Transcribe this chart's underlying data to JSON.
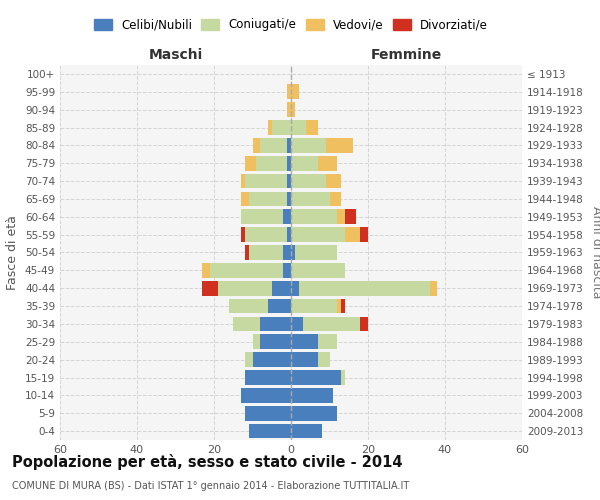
{
  "age_groups_bottom_to_top": [
    "0-4",
    "5-9",
    "10-14",
    "15-19",
    "20-24",
    "25-29",
    "30-34",
    "35-39",
    "40-44",
    "45-49",
    "50-54",
    "55-59",
    "60-64",
    "65-69",
    "70-74",
    "75-79",
    "80-84",
    "85-89",
    "90-94",
    "95-99",
    "100+"
  ],
  "birth_years_bottom_to_top": [
    "2009-2013",
    "2004-2008",
    "1999-2003",
    "1994-1998",
    "1989-1993",
    "1984-1988",
    "1979-1983",
    "1974-1978",
    "1969-1973",
    "1964-1968",
    "1959-1963",
    "1954-1958",
    "1949-1953",
    "1944-1948",
    "1939-1943",
    "1934-1938",
    "1929-1933",
    "1924-1928",
    "1919-1923",
    "1914-1918",
    "≤ 1913"
  ],
  "males": {
    "celibi": [
      11,
      12,
      13,
      12,
      10,
      8,
      8,
      6,
      5,
      2,
      2,
      1,
      2,
      1,
      1,
      1,
      1,
      0,
      0,
      0,
      0
    ],
    "coniugati": [
      0,
      0,
      0,
      0,
      2,
      2,
      7,
      10,
      14,
      19,
      9,
      11,
      11,
      10,
      11,
      8,
      7,
      5,
      0,
      0,
      0
    ],
    "vedovi": [
      0,
      0,
      0,
      0,
      0,
      0,
      0,
      0,
      0,
      2,
      0,
      0,
      0,
      2,
      1,
      3,
      2,
      1,
      1,
      1,
      0
    ],
    "divorziati": [
      0,
      0,
      0,
      0,
      0,
      0,
      0,
      0,
      4,
      0,
      1,
      1,
      0,
      0,
      0,
      0,
      0,
      0,
      0,
      0,
      0
    ]
  },
  "females": {
    "nubili": [
      8,
      12,
      11,
      13,
      7,
      7,
      3,
      0,
      2,
      0,
      1,
      0,
      0,
      0,
      0,
      0,
      0,
      0,
      0,
      0,
      0
    ],
    "coniugate": [
      0,
      0,
      0,
      1,
      3,
      5,
      15,
      12,
      34,
      14,
      11,
      14,
      12,
      10,
      9,
      7,
      9,
      4,
      0,
      0,
      0
    ],
    "vedove": [
      0,
      0,
      0,
      0,
      0,
      0,
      0,
      1,
      2,
      0,
      0,
      4,
      2,
      3,
      4,
      5,
      7,
      3,
      1,
      2,
      0
    ],
    "divorziate": [
      0,
      0,
      0,
      0,
      0,
      0,
      2,
      1,
      0,
      0,
      0,
      2,
      3,
      0,
      0,
      0,
      0,
      0,
      0,
      0,
      0
    ]
  },
  "colors": {
    "celibi": "#4a7fbd",
    "coniugati": "#c5d9a0",
    "vedovi": "#f0c060",
    "divorziati": "#d03020"
  },
  "xlim": 60,
  "title_main": "Popolazione per età, sesso e stato civile - 2014",
  "title_sub": "COMUNE DI MURA (BS) - Dati ISTAT 1° gennaio 2014 - Elaborazione TUTTITALIA.IT",
  "ylabel_left": "Fasce di età",
  "ylabel_right": "Anni di nascita",
  "xlabel_maschi": "Maschi",
  "xlabel_femmine": "Femmine"
}
